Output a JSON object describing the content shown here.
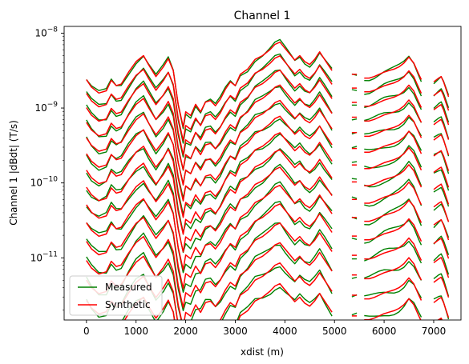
{
  "chart_data": {
    "type": "line",
    "title": "Channel 1",
    "xlabel": "xdist (m)",
    "ylabel": "Channel 1 |dBdt| (T/s)",
    "xlim": [
      -450,
      7550
    ],
    "ylim_log10": [
      -11.83,
      -7.91
    ],
    "yscale": "log",
    "x_ticks": [
      0,
      1000,
      2000,
      3000,
      4000,
      5000,
      6000,
      7000
    ],
    "x_tick_labels": [
      "0",
      "1000",
      "2000",
      "3000",
      "4000",
      "5000",
      "6000",
      "7000"
    ],
    "y_ticks_log10": [
      -11,
      -10,
      -9,
      -8
    ],
    "y_tick_labels": [
      {
        "base": "10",
        "exp": "−11"
      },
      {
        "base": "10",
        "exp": "−10"
      },
      {
        "base": "10",
        "exp": "−9"
      },
      {
        "base": "10",
        "exp": "−8"
      }
    ],
    "legend": {
      "placement": "lower-left",
      "entries": [
        {
          "label": "Measured",
          "color": "#008000"
        },
        {
          "label": "Synthetic",
          "color": "#ff0000"
        }
      ]
    },
    "profile": {
      "x": [
        0,
        100,
        250,
        400,
        500,
        600,
        700,
        850,
        1000,
        1150,
        1250,
        1400,
        1550,
        1650,
        1750,
        1850,
        1950,
        2000,
        2100,
        2200,
        2300,
        2400,
        2500,
        2600,
        2700,
        2800,
        2900,
        3000,
        3100,
        3250,
        3400,
        3550,
        3700,
        3800,
        3900,
        4000,
        4100,
        4200,
        4300,
        4400,
        4500,
        4600,
        4700,
        4800,
        4950
      ],
      "log10": [
        -8.62,
        -8.72,
        -8.8,
        -8.77,
        -8.63,
        -8.7,
        -8.68,
        -8.52,
        -8.38,
        -8.3,
        -8.42,
        -8.58,
        -8.45,
        -8.34,
        -8.5,
        -8.95,
        -9.25,
        -9.05,
        -9.1,
        -8.95,
        -9.05,
        -8.92,
        -8.9,
        -8.97,
        -8.88,
        -8.75,
        -8.65,
        -8.7,
        -8.55,
        -8.48,
        -8.35,
        -8.3,
        -8.22,
        -8.15,
        -8.12,
        -8.2,
        -8.28,
        -8.36,
        -8.3,
        -8.38,
        -8.42,
        -8.35,
        -8.25,
        -8.35,
        -8.5
      ]
    },
    "segments": [
      {
        "x": [
          5350,
          5450
        ],
        "log10": [
          -8.55,
          -8.55
        ]
      },
      {
        "x": [
          5600,
          5700,
          5800,
          5900,
          6000,
          6100,
          6200,
          6300,
          6400,
          6500,
          6600,
          6700,
          6750
        ],
        "log10": [
          -8.6,
          -8.6,
          -8.58,
          -8.55,
          -8.52,
          -8.5,
          -8.48,
          -8.45,
          -8.4,
          -8.32,
          -8.4,
          -8.55,
          -8.62
        ]
      },
      {
        "x": [
          7000,
          7100,
          7150,
          7200,
          7300
        ],
        "log10": [
          -8.65,
          -8.6,
          -8.58,
          -8.65,
          -8.85
        ]
      }
    ],
    "n_channels": 15,
    "channel_step_log10": 0.18,
    "bottom_channel_offset_log10": -2.55,
    "series": [
      {
        "name": "Measured",
        "color": "#008000"
      },
      {
        "name": "Synthetic",
        "color": "#ff0000"
      }
    ]
  }
}
